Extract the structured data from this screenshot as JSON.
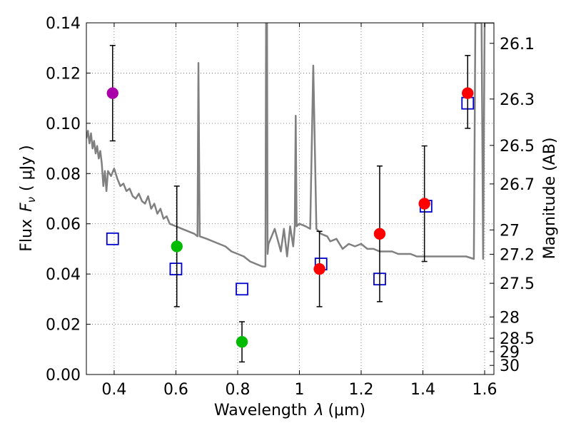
{
  "chart_data": {
    "type": "scatter",
    "title": "",
    "xlabel": "Wavelength",
    "xlabel_symbol": "λ",
    "xlabel_unit": "(μm)",
    "ylabel": "Flux",
    "ylabel_symbol": "F",
    "ylabel_subscript": "ν",
    "ylabel_unit": "( μJy )",
    "y2label": "Magnitude (AB)",
    "xlim": [
      0.31,
      1.63
    ],
    "ylim": [
      0.0,
      0.14
    ],
    "grid": true,
    "colors": {
      "sed": "#808080",
      "model_marker": "#0000cc",
      "obs_magenta": "#aa00aa",
      "obs_green": "#00bb00",
      "obs_red": "#ff0000",
      "errorbar": "#000000"
    },
    "x_ticks": [
      {
        "value": 0.4,
        "label": "0.4"
      },
      {
        "value": 0.6,
        "label": "0.6"
      },
      {
        "value": 0.8,
        "label": "0.8"
      },
      {
        "value": 1.0,
        "label": "1"
      },
      {
        "value": 1.2,
        "label": "1.2"
      },
      {
        "value": 1.4,
        "label": "1.4"
      },
      {
        "value": 1.6,
        "label": "1.6"
      }
    ],
    "y_ticks": [
      {
        "value": 0.0,
        "label": "0.00"
      },
      {
        "value": 0.02,
        "label": "0.02"
      },
      {
        "value": 0.04,
        "label": "0.04"
      },
      {
        "value": 0.06,
        "label": "0.06"
      },
      {
        "value": 0.08,
        "label": "0.08"
      },
      {
        "value": 0.1,
        "label": "0.10"
      },
      {
        "value": 0.12,
        "label": "0.12"
      },
      {
        "value": 0.14,
        "label": "0.14"
      }
    ],
    "mag_ticks": [
      {
        "value": 26.1,
        "label": "26.1"
      },
      {
        "value": 26.3,
        "label": "26.3"
      },
      {
        "value": 26.5,
        "label": "26.5"
      },
      {
        "value": 26.7,
        "label": "26.7"
      },
      {
        "value": 27.0,
        "label": "27"
      },
      {
        "value": 27.2,
        "label": "27.2"
      },
      {
        "value": 27.5,
        "label": "27.5"
      },
      {
        "value": 28.0,
        "label": "28"
      },
      {
        "value": 28.5,
        "label": "28.5"
      },
      {
        "value": 29.0,
        "label": "29"
      },
      {
        "value": 30.0,
        "label": "30"
      }
    ],
    "model_points": [
      {
        "x": 0.395,
        "y": 0.054
      },
      {
        "x": 0.6,
        "y": 0.042
      },
      {
        "x": 0.814,
        "y": 0.034
      },
      {
        "x": 1.07,
        "y": 0.044
      },
      {
        "x": 1.26,
        "y": 0.038
      },
      {
        "x": 1.41,
        "y": 0.067
      },
      {
        "x": 1.545,
        "y": 0.108
      }
    ],
    "observed_points": [
      {
        "x": 0.395,
        "y": 0.112,
        "err_lo": 0.093,
        "err_hi": 0.131,
        "color": "magenta"
      },
      {
        "x": 0.603,
        "y": 0.051,
        "err_lo": 0.027,
        "err_hi": 0.075,
        "color": "green"
      },
      {
        "x": 0.814,
        "y": 0.013,
        "err_lo": 0.005,
        "err_hi": 0.021,
        "color": "green"
      },
      {
        "x": 1.065,
        "y": 0.042,
        "err_lo": 0.027,
        "err_hi": 0.057,
        "color": "red"
      },
      {
        "x": 1.26,
        "y": 0.056,
        "err_lo": 0.029,
        "err_hi": 0.083,
        "color": "red"
      },
      {
        "x": 1.405,
        "y": 0.068,
        "err_lo": 0.045,
        "err_hi": 0.091,
        "color": "red"
      },
      {
        "x": 1.545,
        "y": 0.112,
        "err_lo": 0.098,
        "err_hi": 0.127,
        "color": "red"
      }
    ],
    "sed_curve": [
      [
        0.31,
        0.094
      ],
      [
        0.315,
        0.097
      ],
      [
        0.32,
        0.092
      ],
      [
        0.325,
        0.096
      ],
      [
        0.33,
        0.09
      ],
      [
        0.335,
        0.093
      ],
      [
        0.34,
        0.088
      ],
      [
        0.345,
        0.091
      ],
      [
        0.35,
        0.086
      ],
      [
        0.355,
        0.089
      ],
      [
        0.36,
        0.084
      ],
      [
        0.365,
        0.075
      ],
      [
        0.37,
        0.081
      ],
      [
        0.375,
        0.073
      ],
      [
        0.38,
        0.081
      ],
      [
        0.39,
        0.079
      ],
      [
        0.4,
        0.082
      ],
      [
        0.41,
        0.078
      ],
      [
        0.42,
        0.075
      ],
      [
        0.43,
        0.076
      ],
      [
        0.44,
        0.073
      ],
      [
        0.45,
        0.074
      ],
      [
        0.46,
        0.071
      ],
      [
        0.47,
        0.07
      ],
      [
        0.48,
        0.072
      ],
      [
        0.49,
        0.069
      ],
      [
        0.5,
        0.068
      ],
      [
        0.51,
        0.071
      ],
      [
        0.52,
        0.066
      ],
      [
        0.53,
        0.068
      ],
      [
        0.54,
        0.064
      ],
      [
        0.55,
        0.066
      ],
      [
        0.56,
        0.062
      ],
      [
        0.57,
        0.063
      ],
      [
        0.58,
        0.06
      ],
      [
        0.6,
        0.059
      ],
      [
        0.62,
        0.058
      ],
      [
        0.64,
        0.057
      ],
      [
        0.66,
        0.056
      ],
      [
        0.67,
        0.055
      ],
      [
        0.673,
        0.124
      ],
      [
        0.677,
        0.055
      ],
      [
        0.7,
        0.054
      ],
      [
        0.72,
        0.053
      ],
      [
        0.74,
        0.052
      ],
      [
        0.76,
        0.051
      ],
      [
        0.78,
        0.049
      ],
      [
        0.8,
        0.048
      ],
      [
        0.82,
        0.047
      ],
      [
        0.84,
        0.045
      ],
      [
        0.86,
        0.044
      ],
      [
        0.88,
        0.043
      ],
      [
        0.89,
        0.043
      ],
      [
        0.892,
        0.14
      ],
      [
        0.895,
        0.14
      ],
      [
        0.897,
        0.048
      ],
      [
        0.9,
        0.052
      ],
      [
        0.92,
        0.058
      ],
      [
        0.94,
        0.049
      ],
      [
        0.95,
        0.058
      ],
      [
        0.96,
        0.047
      ],
      [
        0.97,
        0.059
      ],
      [
        0.98,
        0.051
      ],
      [
        0.985,
        0.059
      ],
      [
        0.988,
        0.103
      ],
      [
        0.991,
        0.059
      ],
      [
        1.0,
        0.06
      ],
      [
        1.02,
        0.059
      ],
      [
        1.035,
        0.058
      ],
      [
        1.045,
        0.123
      ],
      [
        1.055,
        0.058
      ],
      [
        1.07,
        0.056
      ],
      [
        1.09,
        0.055
      ],
      [
        1.1,
        0.053
      ],
      [
        1.12,
        0.054
      ],
      [
        1.14,
        0.05
      ],
      [
        1.16,
        0.052
      ],
      [
        1.18,
        0.051
      ],
      [
        1.2,
        0.052
      ],
      [
        1.22,
        0.05
      ],
      [
        1.24,
        0.05
      ],
      [
        1.26,
        0.049
      ],
      [
        1.28,
        0.049
      ],
      [
        1.3,
        0.049
      ],
      [
        1.32,
        0.048
      ],
      [
        1.34,
        0.048
      ],
      [
        1.36,
        0.048
      ],
      [
        1.38,
        0.047
      ],
      [
        1.4,
        0.047
      ],
      [
        1.42,
        0.047
      ],
      [
        1.44,
        0.047
      ],
      [
        1.46,
        0.047
      ],
      [
        1.48,
        0.047
      ],
      [
        1.5,
        0.047
      ],
      [
        1.52,
        0.047
      ],
      [
        1.54,
        0.047
      ],
      [
        1.565,
        0.046
      ],
      [
        1.57,
        0.14
      ],
      [
        1.59,
        0.14
      ],
      [
        1.595,
        0.046
      ],
      [
        1.6,
        0.14
      ],
      [
        1.63,
        0.14
      ]
    ]
  }
}
